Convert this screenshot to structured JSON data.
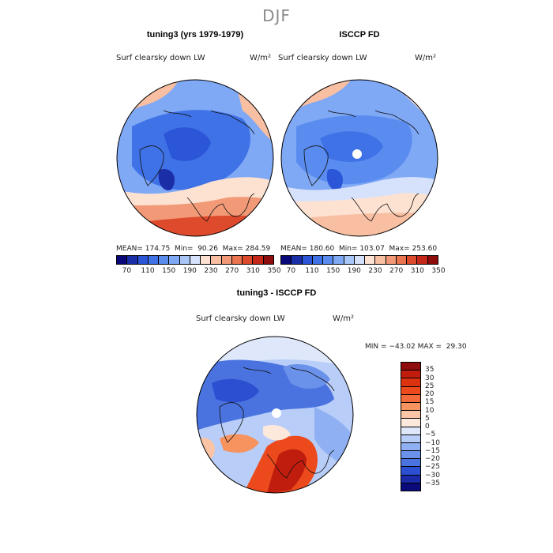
{
  "figure": {
    "title": "DJF"
  },
  "panels": {
    "left": {
      "title": "tuning3 (yrs 1979-1979)",
      "variable": "Surf clearsky down LW",
      "units": "W/m²",
      "stats": "MEAN= 174.75  Min=  90.26  Max= 284.59"
    },
    "right": {
      "title": "ISCCP FD",
      "variable": "Surf clearsky down LW",
      "units": "W/m²",
      "stats": "MEAN= 180.60  Min= 103.07  Max= 253.60"
    },
    "diff": {
      "title": "tuning3 - ISCCP FD",
      "variable": "Surf clearsky down LW",
      "units": "W/m²",
      "stats": "MIN = −43.02 MAX =  29.30"
    }
  },
  "colorbar_abs": {
    "labels": [
      "70",
      "110",
      "150",
      "190",
      "230",
      "270",
      "310",
      "350"
    ],
    "colors": [
      "#08087a",
      "#1a2ea8",
      "#2c56d8",
      "#3f72e6",
      "#5a8cf0",
      "#7fa8f5",
      "#a9c6f8",
      "#d6e2fb",
      "#fde2d2",
      "#f8bfa2",
      "#f29a78",
      "#ea7350",
      "#de4a2c",
      "#c52818",
      "#8e0c0c"
    ]
  },
  "colorbar_diff": {
    "labels": [
      "35",
      "30",
      "25",
      "20",
      "15",
      "10",
      "5",
      "0",
      "−5",
      "−10",
      "−15",
      "−20",
      "−25",
      "−30",
      "−35"
    ],
    "colors": [
      "#8e0c0c",
      "#c01d0e",
      "#dc3210",
      "#ec4a1c",
      "#f26a3a",
      "#f6935f",
      "#fbc4a6",
      "#fde8dc",
      "#dfe8fb",
      "#b8cdf8",
      "#8fb0f2",
      "#6a92ea",
      "#4a73e0",
      "#2b4fd0",
      "#1a2aa8",
      "#0a0a7a"
    ]
  },
  "chart_data": {
    "type": "heatmap",
    "title": "DJF",
    "maps": [
      {
        "name": "tuning3 (yrs 1979-1979)",
        "variable": "Surf clearsky down LW",
        "units": "W/m²",
        "mean": 174.75,
        "min": 90.26,
        "max": 284.59,
        "range": [
          70,
          350
        ]
      },
      {
        "name": "ISCCP FD",
        "variable": "Surf clearsky down LW",
        "units": "W/m²",
        "mean": 180.6,
        "min": 103.07,
        "max": 253.6,
        "range": [
          70,
          350
        ]
      },
      {
        "name": "tuning3 - ISCCP FD",
        "variable": "Surf clearsky down LW",
        "units": "W/m²",
        "min": -43.02,
        "max": 29.3,
        "range": [
          -35,
          35
        ]
      }
    ]
  }
}
